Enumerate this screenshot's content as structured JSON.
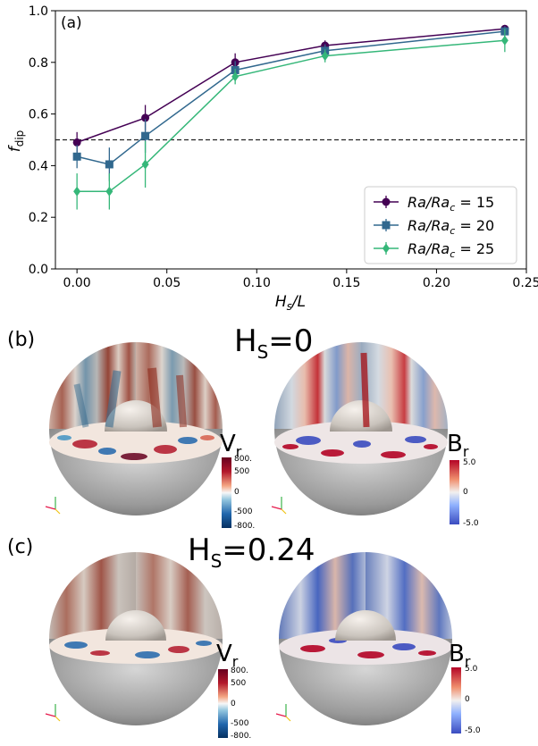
{
  "chart_data": {
    "type": "line",
    "panel_label": "(a)",
    "x_label": "H",
    "x_label_sub": "s",
    "x_label_suffix": "/L",
    "y_label": "f",
    "y_label_sub": "dip",
    "xlim": [
      -0.012,
      0.25
    ],
    "ylim": [
      0.0,
      1.0
    ],
    "x_ticks": [
      "0.00",
      "0.05",
      "0.10",
      "0.15",
      "0.20",
      "0.25"
    ],
    "x_tick_values": [
      0.0,
      0.05,
      0.1,
      0.15,
      0.2,
      0.25
    ],
    "y_ticks": [
      "0.0",
      "0.2",
      "0.4",
      "0.6",
      "0.8",
      "1.0"
    ],
    "y_tick_values": [
      0.0,
      0.2,
      0.4,
      0.6,
      0.8,
      1.0
    ],
    "reference_line": 0.5,
    "legend_position": "lower-right",
    "series": [
      {
        "name": "Ra/Ra_c = 15",
        "legend_text": "Ra/Ra",
        "legend_sub": "c",
        "legend_value": " = 15",
        "color": "#440154",
        "marker": "circle",
        "x": [
          0.0,
          0.038,
          0.088,
          0.138,
          0.238
        ],
        "y": [
          0.49,
          0.585,
          0.8,
          0.865,
          0.93
        ],
        "err": [
          0.04,
          0.05,
          0.035,
          0.02,
          0.015
        ]
      },
      {
        "name": "Ra/Ra_c = 20",
        "legend_text": "Ra/Ra",
        "legend_sub": "c",
        "legend_value": " = 20",
        "color": "#31688e",
        "marker": "square",
        "x": [
          0.0,
          0.018,
          0.038,
          0.088,
          0.138,
          0.238
        ],
        "y": [
          0.435,
          0.405,
          0.515,
          0.77,
          0.845,
          0.92
        ],
        "err": [
          0.045,
          0.065,
          0.065,
          0.035,
          0.025,
          0.02
        ]
      },
      {
        "name": "Ra/Ra_c = 25",
        "legend_text": "Ra/Ra",
        "legend_sub": "c",
        "legend_value": " = 25",
        "color": "#35b779",
        "marker": "diamond",
        "x": [
          0.0,
          0.018,
          0.038,
          0.088,
          0.138,
          0.238
        ],
        "y": [
          0.3,
          0.3,
          0.405,
          0.745,
          0.825,
          0.885
        ],
        "err": [
          0.07,
          0.07,
          0.09,
          0.03,
          0.025,
          0.045
        ]
      }
    ]
  },
  "panels": [
    {
      "label": "(b)",
      "title_main": "H",
      "title_sub": "S",
      "title_value": "=0",
      "left": {
        "quantity": "V",
        "quantity_sub": "r",
        "colormap": "dark-red-blue",
        "ticks": [
          "800.",
          "500",
          "0",
          "-500",
          "-800."
        ]
      },
      "right": {
        "quantity": "B",
        "quantity_sub": "r",
        "colormap": "cool-warm",
        "ticks": [
          "5.0",
          "0",
          "-5.0"
        ]
      }
    },
    {
      "label": "(c)",
      "title_main": "H",
      "title_sub": "S",
      "title_value": "=0.24",
      "left": {
        "quantity": "V",
        "quantity_sub": "r",
        "colormap": "dark-red-blue",
        "ticks": [
          "800.",
          "500",
          "0",
          "-500",
          "-800."
        ]
      },
      "right": {
        "quantity": "B",
        "quantity_sub": "r",
        "colormap": "cool-warm",
        "ticks": [
          "5.0",
          "0",
          "-5.0"
        ]
      }
    }
  ]
}
